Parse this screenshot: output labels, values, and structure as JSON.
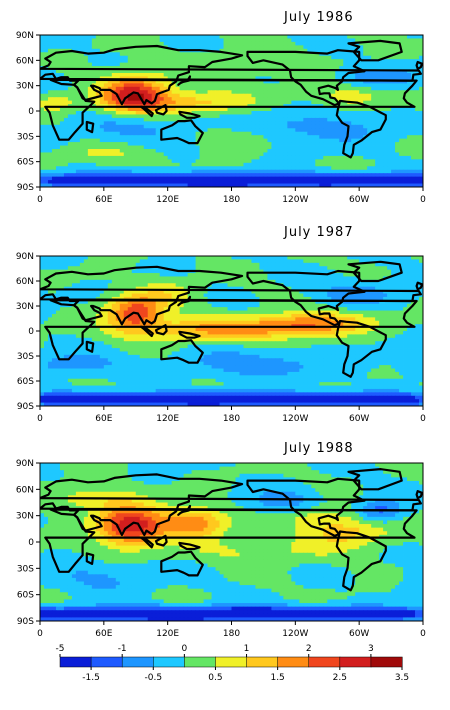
{
  "panels": [
    {
      "title": "July 1986",
      "hotspots": [
        {
          "lon": 88,
          "lat": 20,
          "amp": 2.6,
          "sx": 22,
          "sy": 16
        },
        {
          "lon": 140,
          "lat": 10,
          "amp": 1.3,
          "sx": 40,
          "sy": 10
        },
        {
          "lon": 15,
          "lat": 10,
          "amp": 0.9,
          "sx": 15,
          "sy": 8
        },
        {
          "lon": 290,
          "lat": 18,
          "amp": 0.8,
          "sx": 25,
          "sy": 10
        },
        {
          "lon": 180,
          "lat": -30,
          "amp": 0.6,
          "sx": 30,
          "sy": 10
        },
        {
          "lon": 200,
          "lat": 55,
          "amp": 0.4,
          "sx": 50,
          "sy": 12
        },
        {
          "lon": 100,
          "lat": -20,
          "amp": -0.6,
          "sx": 50,
          "sy": 15
        },
        {
          "lon": 260,
          "lat": -20,
          "amp": -0.7,
          "sx": 50,
          "sy": 15
        },
        {
          "lon": 320,
          "lat": 40,
          "amp": -0.8,
          "sx": 30,
          "sy": 10
        },
        {
          "lon": 60,
          "lat": -50,
          "amp": 0.5,
          "sx": 40,
          "sy": 8
        },
        {
          "lon": 180,
          "lat": -82,
          "amp": -2.5,
          "sx": 200,
          "sy": 6
        }
      ]
    },
    {
      "title": "July 1987",
      "hotspots": [
        {
          "lon": 90,
          "lat": 22,
          "amp": 2.4,
          "sx": 18,
          "sy": 14
        },
        {
          "lon": 160,
          "lat": 2,
          "amp": 1.5,
          "sx": 55,
          "sy": 10
        },
        {
          "lon": 265,
          "lat": 10,
          "amp": 1.4,
          "sx": 35,
          "sy": 10
        },
        {
          "lon": 230,
          "lat": 5,
          "amp": 0.8,
          "sx": 30,
          "sy": 8
        },
        {
          "lon": 120,
          "lat": 45,
          "amp": 0.7,
          "sx": 20,
          "sy": 12
        },
        {
          "lon": 30,
          "lat": -40,
          "amp": -0.8,
          "sx": 30,
          "sy": 10
        },
        {
          "lon": 200,
          "lat": -40,
          "amp": -0.8,
          "sx": 50,
          "sy": 12
        },
        {
          "lon": 300,
          "lat": 45,
          "amp": -0.7,
          "sx": 30,
          "sy": 12
        },
        {
          "lon": 180,
          "lat": -82,
          "amp": -2.3,
          "sx": 200,
          "sy": 6
        }
      ]
    },
    {
      "title": "July 1988",
      "hotspots": [
        {
          "lon": 85,
          "lat": 18,
          "amp": 2.9,
          "sx": 22,
          "sy": 16
        },
        {
          "lon": 145,
          "lat": 22,
          "amp": 1.9,
          "sx": 22,
          "sy": 12
        },
        {
          "lon": 290,
          "lat": 12,
          "amp": 1.2,
          "sx": 28,
          "sy": 12
        },
        {
          "lon": 260,
          "lat": 30,
          "amp": 0.8,
          "sx": 20,
          "sy": 10
        },
        {
          "lon": 50,
          "lat": 50,
          "amp": 0.8,
          "sx": 30,
          "sy": 10
        },
        {
          "lon": 210,
          "lat": -10,
          "amp": 0.6,
          "sx": 50,
          "sy": 10
        },
        {
          "lon": 320,
          "lat": 35,
          "amp": -1.3,
          "sx": 15,
          "sy": 10
        },
        {
          "lon": 230,
          "lat": 45,
          "amp": -0.8,
          "sx": 25,
          "sy": 10
        },
        {
          "lon": 60,
          "lat": -40,
          "amp": -0.6,
          "sx": 40,
          "sy": 12
        },
        {
          "lon": 180,
          "lat": -82,
          "amp": -2.5,
          "sx": 200,
          "sy": 6
        }
      ]
    }
  ],
  "lat_ticks": [
    "90N",
    "60N",
    "30N",
    "0",
    "30S",
    "60S",
    "90S"
  ],
  "lon_ticks": [
    "0",
    "60E",
    "120E",
    "180",
    "120W",
    "60W",
    "0"
  ],
  "colorbar": {
    "bounds": [
      -5,
      -1.5,
      -1,
      -0.5,
      0,
      0.5,
      1,
      1.5,
      2,
      2.5,
      3,
      3.5
    ],
    "colors": [
      "#0a1ed8",
      "#1e5aff",
      "#1e96ff",
      "#1ec8ff",
      "#64e664",
      "#f0f028",
      "#ffc81e",
      "#ff8c14",
      "#f0461e",
      "#d21e1e",
      "#a00a0a"
    ],
    "top_labels": [
      "-5",
      "-1",
      "0",
      "1",
      "2",
      "3"
    ],
    "bottom_labels": [
      "-1.5",
      "-0.5",
      "0.5",
      "1.5",
      "2.5",
      "3.5"
    ]
  }
}
